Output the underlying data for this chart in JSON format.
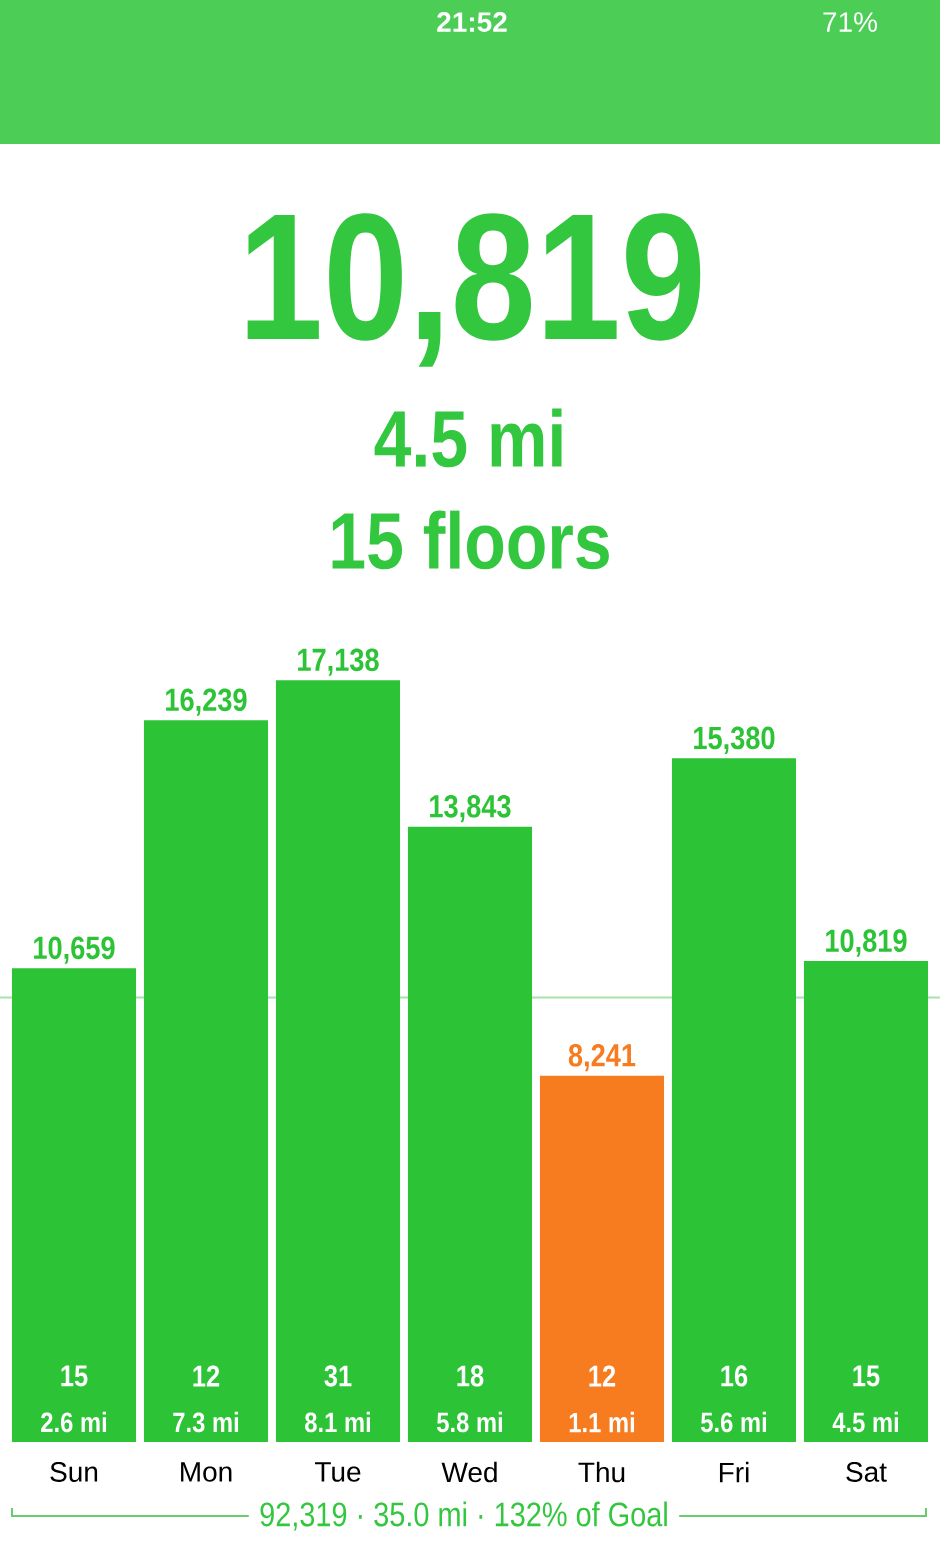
{
  "chart_data": {
    "type": "bar",
    "title": "10,819",
    "subtitle": "4.5 mi",
    "categories": [
      "Sun",
      "Mon",
      "Tue",
      "Wed",
      "Thu",
      "Fri",
      "Sat"
    ],
    "values": [
      10659,
      16239,
      17138,
      13843,
      8241,
      15380,
      10819
    ],
    "value_labels": [
      "10,659",
      "16,239",
      "17,138",
      "13,843",
      "8,241",
      "15,380",
      "10,819"
    ],
    "colors": [
      "#2dc337",
      "#2dc337",
      "#2dc337",
      "#2dc337",
      "#f77b1f",
      "#2dc337",
      "#2dc337"
    ],
    "tick_labels": "x",
    "ref_lines": [
      {
        "axis": "y",
        "value": 10000,
        "color": "#a9e2a9"
      }
    ],
    "annotations": [
      "15 floors",
      "15",
      "2.6 mi",
      "12",
      "7.3 mi",
      "31",
      "8.1 mi",
      "18",
      "5.8 mi",
      "12",
      "1.1 mi",
      "16",
      "5.6 mi",
      "15",
      "4.5 mi",
      "92,319 · 35.0 mi · 132% of Goal",
      "21:52",
      "71%"
    ]
  }
}
